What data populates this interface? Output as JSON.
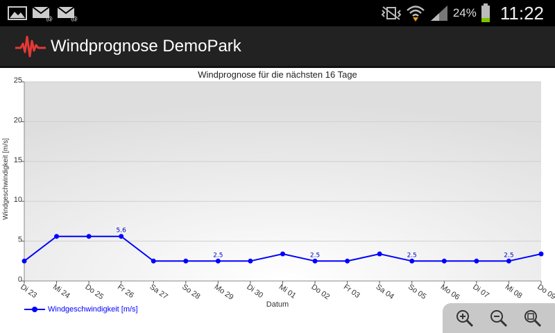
{
  "status_bar": {
    "battery_percent": "24%",
    "time": "11:22",
    "icons": [
      "image-notification-icon",
      "mail-notification-icon",
      "mail-notification-icon",
      "vibrate-icon",
      "wifi-icon",
      "signal-icon",
      "battery-icon"
    ]
  },
  "app": {
    "title": "Windprognose DemoPark",
    "logo_icon": "wind-graph-logo-icon",
    "logo_color": "#e53935"
  },
  "zoom_controls": {
    "icons": [
      "zoom-in-icon",
      "zoom-out-icon",
      "zoom-reset-icon"
    ]
  },
  "chart_data": {
    "type": "line",
    "title": "Windprognose für die nächsten 16 Tage",
    "xlabel": "Datum",
    "ylabel": "Windgeschwindigkeit [m/s]",
    "categories": [
      "Di 23",
      "Mi 24",
      "Do 25",
      "Fr 26",
      "Sa 27",
      "So 28",
      "Mo 29",
      "Di 30",
      "Mi 01",
      "Do 02",
      "Fr 03",
      "Sa 04",
      "So 05",
      "Mo 06",
      "Di 07",
      "Mi 08",
      "Do 09"
    ],
    "y_ticks": [
      "0",
      "5",
      "10",
      "15",
      "20",
      "25"
    ],
    "ylim": [
      0,
      25
    ],
    "series": [
      {
        "name": "Windgeschwindigkeit [m/s]",
        "color": "#0000ff",
        "values": [
          2.5,
          5.6,
          5.6,
          5.6,
          2.5,
          2.5,
          2.5,
          2.5,
          3.4,
          2.5,
          2.5,
          3.4,
          2.5,
          2.5,
          2.5,
          2.5,
          3.4
        ]
      }
    ],
    "data_labels": [
      {
        "index": 3,
        "text": "5.6"
      },
      {
        "index": 6,
        "text": "2.5"
      },
      {
        "index": 9,
        "text": "2.5"
      },
      {
        "index": 12,
        "text": "2.5"
      },
      {
        "index": 15,
        "text": "2.5"
      }
    ],
    "grid": true,
    "legend_position": "bottom-left"
  }
}
